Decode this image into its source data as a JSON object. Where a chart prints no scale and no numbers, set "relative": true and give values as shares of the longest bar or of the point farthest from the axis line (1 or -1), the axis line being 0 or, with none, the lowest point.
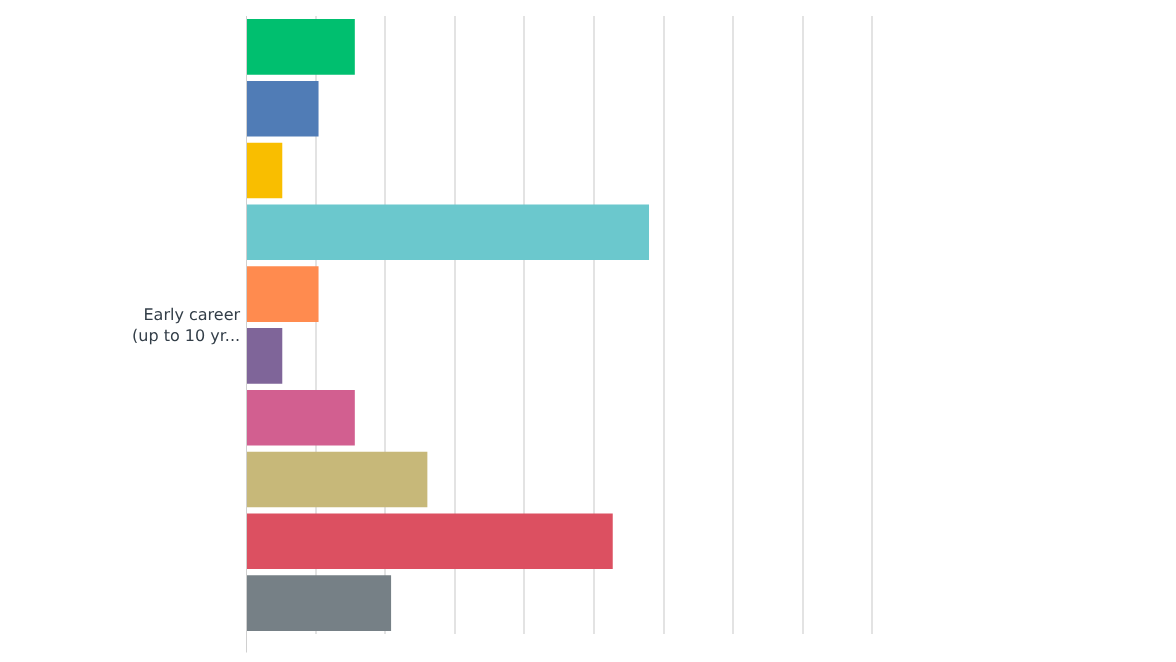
{
  "chart_data": {
    "type": "bar",
    "orientation": "horizontal",
    "relative": true,
    "grid": "x",
    "categories": [
      null,
      null,
      null,
      null,
      null,
      null,
      null,
      null,
      null,
      null
    ],
    "annotations": [
      "Early career (up to 10 yr..."
    ],
    "values": [
      0.27,
      0.18,
      0.09,
      1,
      0.18,
      0.09,
      0.27,
      0.45,
      0.91,
      0.36
    ],
    "colors": [
      "#00bf6f",
      "#507cb6",
      "#f9be00",
      "#6bc8cd",
      "#ff8b4f",
      "#7f6599",
      "#d25f90",
      "#c7b879",
      "#dc5061",
      "#768086"
    ]
  }
}
